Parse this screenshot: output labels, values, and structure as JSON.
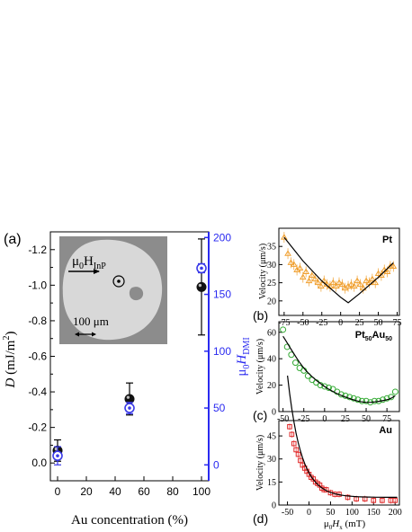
{
  "colors": {
    "right_axis": "#2a2af0",
    "D_marker": "#111111",
    "Hdmi_marker": "#3a3ae8",
    "pt_data": "#f0a030",
    "ptau_data": "#33aa33",
    "au_data": "#e02828",
    "fit": "#000000",
    "inset_bg": "#8c8c8c",
    "inset_domain": "#d8d8d8"
  },
  "panel_a": {
    "label": "(a)",
    "inset": {
      "field_label_main": "μ",
      "field_label_sub0": "0",
      "field_label_H": "H",
      "field_label_sub": "InP",
      "scale_label": "100 μm"
    }
  },
  "panel_b_label": "(b)",
  "panel_c_label": "(c)",
  "panel_d_label": "(d)",
  "chart_data": [
    {
      "id": "a",
      "type": "scatter",
      "xlabel": "Au concentration (%)",
      "ylabel_left": "D (mJ/m²)",
      "ylabel_left_parts": {
        "sym": "D",
        "unit": " (mJ/m",
        "sup": "2",
        "close": ")"
      },
      "ylabel_right_parts": {
        "mu": "μ",
        "sub0": "0",
        "H": "H",
        "sub": "DMI"
      },
      "xlim": [
        -5,
        105
      ],
      "ylim_left": [
        0.1,
        -1.3
      ],
      "ylim_right": [
        -14,
        205
      ],
      "xticks": [
        0,
        20,
        40,
        60,
        80,
        100
      ],
      "yticks_left": [
        0.0,
        -0.2,
        -0.4,
        -0.6,
        -0.8,
        -1.0,
        -1.2
      ],
      "yticks_left_labels": [
        "0.0",
        "-0.2",
        "-0.4",
        "-0.6",
        "-0.8",
        "-1.0",
        "-1.2"
      ],
      "yticks_right": [
        0,
        50,
        100,
        150,
        200
      ],
      "series": [
        {
          "axis": "left",
          "x": [
            0,
            50,
            100
          ],
          "y": [
            -0.07,
            -0.36,
            -0.99
          ],
          "err": [
            0.06,
            0.09,
            0.27
          ]
        },
        {
          "axis": "right",
          "x": [
            0,
            50,
            100
          ],
          "y": [
            8,
            50,
            173
          ],
          "err": [
            8,
            5,
            4
          ]
        }
      ]
    },
    {
      "id": "b",
      "type": "scatter",
      "ylabel": "Velocity (μm/s)",
      "title": "Pt",
      "xlim": [
        -82,
        78
      ],
      "ylim": [
        16,
        40
      ],
      "xticks": [
        -75,
        -50,
        -25,
        0,
        25,
        50,
        75
      ],
      "yticks": [
        20,
        25,
        30,
        35
      ],
      "series": [
        {
          "x": [
            -75,
            -70,
            -66,
            -62,
            -58,
            -54,
            -50,
            -46,
            -42,
            -38,
            -34,
            -30,
            -26,
            -22,
            -18,
            -14,
            -10,
            -6,
            -2,
            2,
            6,
            10,
            14,
            18,
            22,
            26,
            30,
            34,
            38,
            42,
            46,
            50,
            54,
            58,
            62,
            66,
            70
          ],
          "y": [
            37.5,
            33,
            30.5,
            30,
            28.5,
            29,
            26.5,
            28,
            25.5,
            27,
            26,
            25,
            24,
            25.5,
            24.5,
            24,
            25,
            24,
            25,
            24.5,
            23.5,
            24,
            24.5,
            24,
            25.5,
            24.5,
            23.5,
            25.5,
            25,
            26,
            25,
            27.5,
            27,
            28.5,
            28,
            29.5,
            29.5
          ]
        }
      ],
      "fit": {
        "x": [
          -75,
          -50,
          -25,
          0,
          10,
          25,
          50,
          70
        ],
        "y": [
          37.5,
          31.0,
          25.5,
          21.0,
          19.5,
          22.0,
          26.5,
          30.5
        ]
      }
    },
    {
      "id": "c",
      "type": "scatter",
      "ylabel": "Velocity (μm/s)",
      "title_parts": {
        "a": "Pt",
        "s1": "50",
        "b": "Au",
        "s2": "50"
      },
      "xlim": [
        -55,
        90
      ],
      "ylim": [
        0,
        68
      ],
      "xticks": [
        -50,
        -25,
        0,
        25,
        50,
        75
      ],
      "yticks": [
        0,
        20,
        40,
        60
      ],
      "series": [
        {
          "x": [
            -50,
            -45,
            -40,
            -35,
            -30,
            -25,
            -20,
            -15,
            -10,
            -5,
            0,
            5,
            10,
            15,
            20,
            25,
            30,
            35,
            40,
            45,
            50,
            55,
            60,
            65,
            70,
            75,
            80,
            85
          ],
          "y": [
            62,
            49,
            43,
            37,
            33,
            31,
            27,
            24,
            22,
            20,
            19,
            18,
            17,
            15,
            13,
            12,
            11,
            10,
            9,
            8,
            8,
            7,
            8,
            8,
            9,
            10,
            11,
            15
          ]
        }
      ],
      "fit": {
        "x": [
          -50,
          -25,
          0,
          25,
          50,
          75,
          85
        ],
        "y": [
          57,
          33,
          19,
          11,
          7,
          9,
          12
        ]
      }
    },
    {
      "id": "d",
      "type": "scatter",
      "ylabel": "Velocity (μm/s)",
      "xlabel_parts": {
        "mu": "μ",
        "sub0": "0",
        "H": "H",
        "sub": "x",
        "unit": " (mT)"
      },
      "title": "Au",
      "xlim": [
        -70,
        210
      ],
      "ylim": [
        0,
        55
      ],
      "xticks": [
        -50,
        0,
        50,
        100,
        150,
        200
      ],
      "yticks": [
        0,
        15,
        30,
        45
      ],
      "series": [
        {
          "x": [
            -45,
            -40,
            -35,
            -30,
            -25,
            -20,
            -15,
            -10,
            -5,
            0,
            5,
            10,
            15,
            20,
            25,
            30,
            35,
            40,
            50,
            60,
            70,
            90,
            110,
            130,
            150,
            170,
            190,
            200
          ],
          "y": [
            51,
            46,
            40,
            36,
            33,
            29,
            26,
            24,
            22,
            20,
            18,
            17,
            15,
            14,
            13,
            11,
            10,
            10,
            8,
            7,
            7,
            5,
            4,
            4,
            3,
            3,
            3,
            3
          ]
        }
      ],
      "fit": {
        "a": 5,
        "b": 16,
        "k": 0.032
      }
    }
  ]
}
